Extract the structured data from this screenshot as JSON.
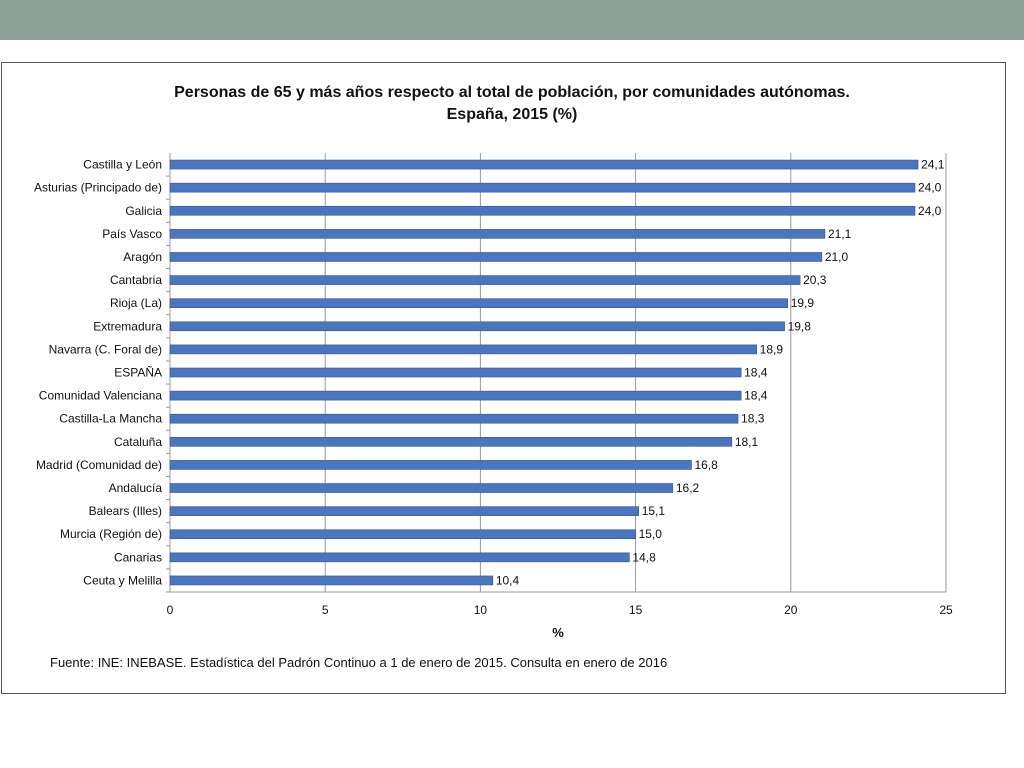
{
  "chart_data": {
    "type": "bar",
    "orientation": "horizontal",
    "title_line1": "Personas de 65 y más años respecto al total de población, por comunidades autónomas.",
    "title_line2": "España, 2015 (%)",
    "xlabel": "%",
    "ylabel": "",
    "xlim": [
      0,
      25
    ],
    "xticks": [
      0,
      5,
      10,
      15,
      20,
      25
    ],
    "grid": "vertical",
    "bar_color": "#4a76c0",
    "categories": [
      "Castilla y León",
      "Asturias (Principado de)",
      "Galicia",
      "País Vasco",
      "Aragón",
      "Cantabria",
      "Rioja (La)",
      "Extremadura",
      "Navarra (C. Foral de)",
      "ESPAÑA",
      "Comunidad Valenciana",
      "Castilla-La Mancha",
      "Cataluña",
      "Madrid (Comunidad de)",
      "Andalucía",
      "Balears (Illes)",
      "Murcia (Región de)",
      "Canarias",
      "Ceuta y Melilla"
    ],
    "values": [
      24.1,
      24.0,
      24.0,
      21.1,
      21.0,
      20.3,
      19.9,
      19.8,
      18.9,
      18.4,
      18.4,
      18.3,
      18.1,
      16.8,
      16.2,
      15.1,
      15.0,
      14.8,
      10.4
    ],
    "value_labels": [
      "24,1",
      "24,0",
      "24,0",
      "21,1",
      "21,0",
      "20,3",
      "19,9",
      "19,8",
      "18,9",
      "18,4",
      "18,4",
      "18,3",
      "18,1",
      "16,8",
      "16,2",
      "15,1",
      "15,0",
      "14,8",
      "10,4"
    ]
  },
  "source": "Fuente: INE: INEBASE. Estadística del Padrón Continuo a 1 de enero de 2015. Consulta en enero de 2016",
  "colors": {
    "top_bar": "#8fa297",
    "bars": "#4a76c0"
  }
}
